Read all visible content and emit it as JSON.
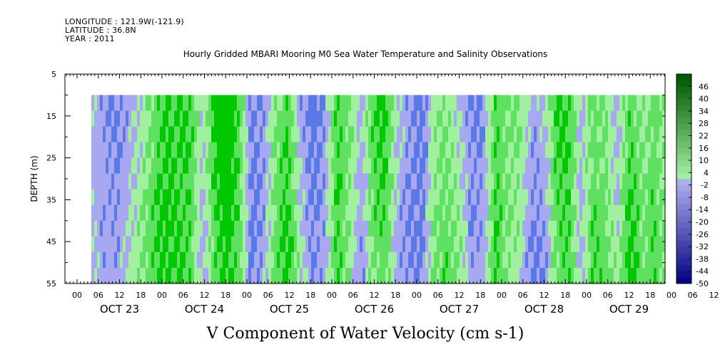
{
  "header": {
    "longitude": "LONGITUDE : 121.9W(-121.9)",
    "latitude": "LATITUDE : 36.8N",
    "year": "YEAR : 2011"
  },
  "chart_data": {
    "type": "heatmap",
    "title": "Hourly Gridded MBARI Mooring M0 Sea Water Temperature and Salinity Observations",
    "xlabel": "V Component of Water Velocity (cm s-1)",
    "ylabel": "DEPTH (m)",
    "y_ticks": [
      "5",
      "15",
      "25",
      "35",
      "45",
      "55"
    ],
    "ylim": [
      5,
      55
    ],
    "y_inverted": true,
    "data_depth_range": [
      10,
      55
    ],
    "x_hour_ticks": [
      "00",
      "06",
      "12",
      "18",
      "00",
      "06",
      "12",
      "18",
      "00",
      "06",
      "12",
      "18",
      "00",
      "06",
      "12",
      "18",
      "00",
      "06",
      "12",
      "18",
      "00",
      "06",
      "12",
      "18",
      "00",
      "06",
      "12",
      "18",
      "00",
      "06",
      "12",
      "18"
    ],
    "x_dates": [
      "OCT 23",
      "OCT 24",
      "OCT 25",
      "OCT 26",
      "OCT 27",
      "OCT 28",
      "OCT 29"
    ],
    "colorbar_ticks": [
      "46",
      "40",
      "34",
      "28",
      "22",
      "16",
      "10",
      "4",
      "-2",
      "-8",
      "-14",
      "-20",
      "-26",
      "-32",
      "-38",
      "-44",
      "-50"
    ],
    "colorbar_range": [
      -50,
      52
    ],
    "colors": {
      "strong_positive": "#00c800",
      "weak_positive": "#a0f0a0",
      "weak_negative": "#a8a8f0",
      "strong_negative": "#5a78e6"
    },
    "velocity_pattern_by_6h": [
      -4,
      -6,
      -7,
      -3,
      2,
      8,
      12,
      10,
      9,
      -4,
      10,
      14,
      8,
      -10,
      -6,
      6,
      12,
      -2,
      -10,
      -6,
      10,
      4,
      -6,
      8,
      9,
      -4,
      -8,
      -10,
      4,
      6,
      2,
      -8,
      -6,
      10,
      4,
      2,
      -8,
      -6,
      8,
      10,
      -4,
      8,
      6,
      -2,
      12,
      4,
      8,
      2
    ]
  }
}
